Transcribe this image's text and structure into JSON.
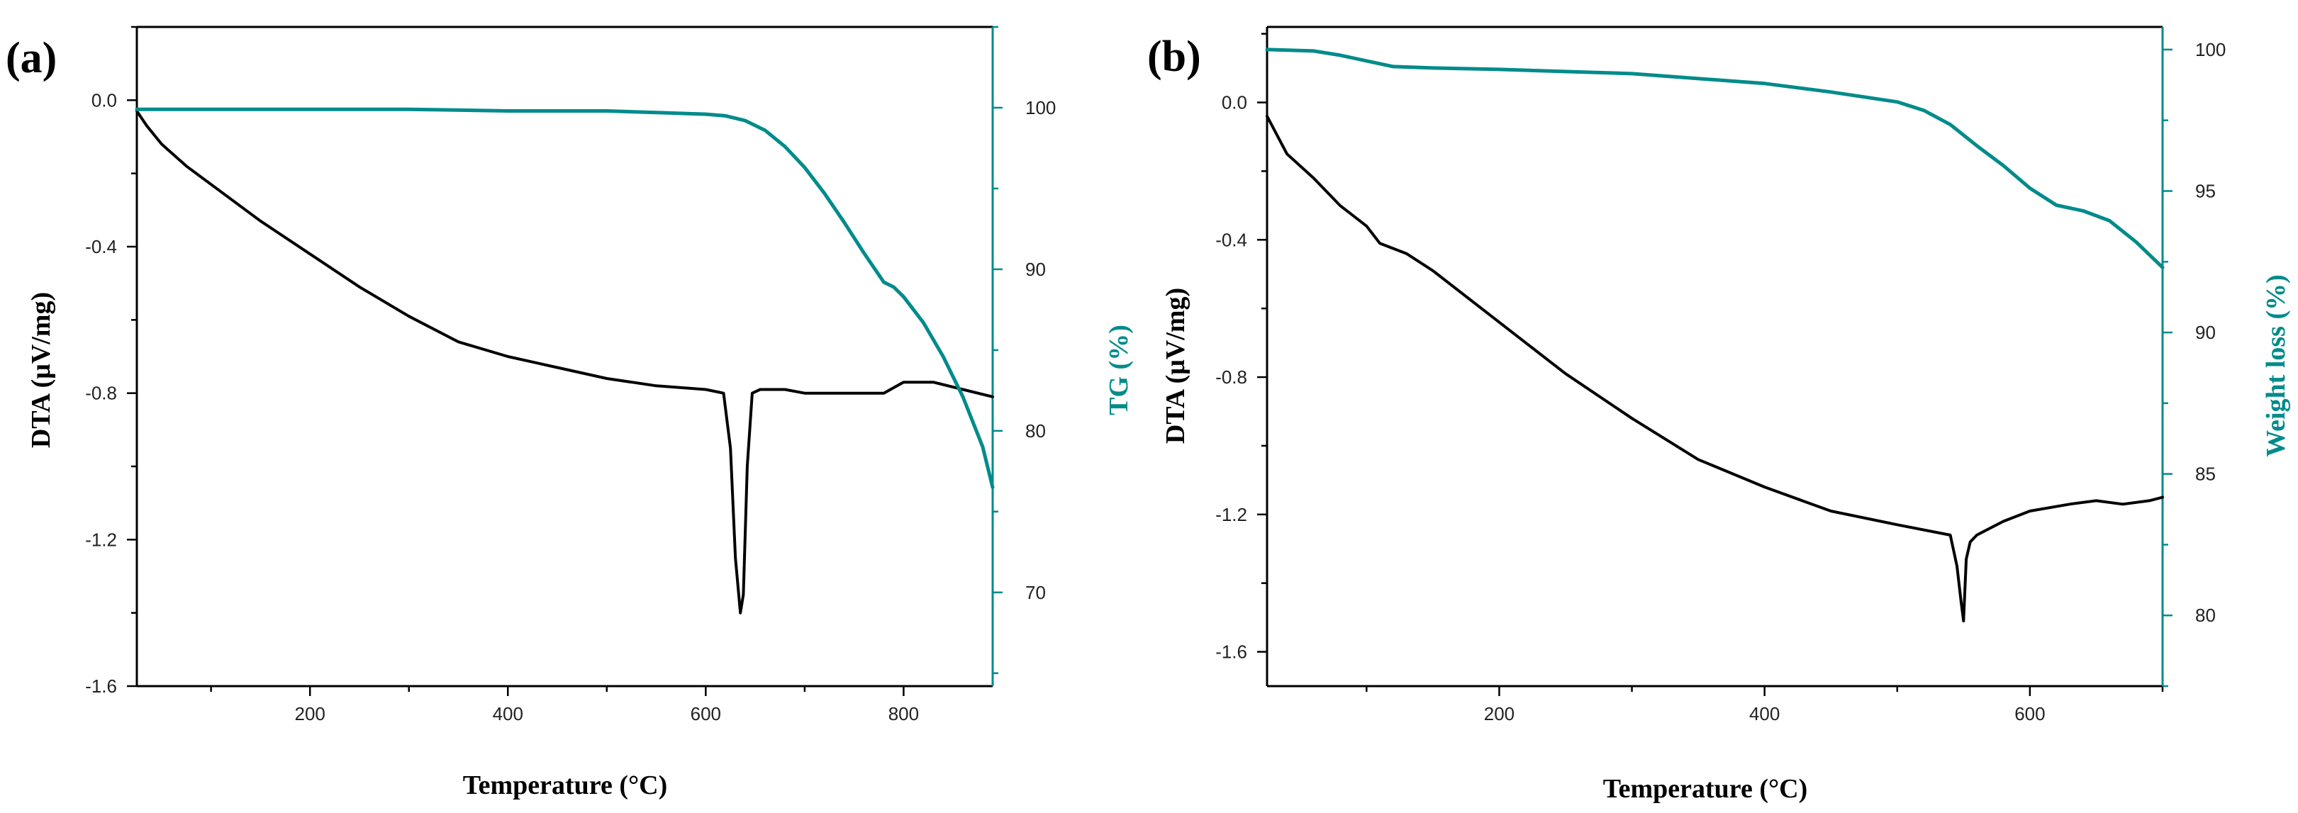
{
  "colors": {
    "dta": "#000000",
    "tg": "#008b8b",
    "axis": "#000000"
  },
  "chart_data": [
    {
      "type": "line",
      "panel_label": "(a)",
      "xlabel": "Temperature (°C)",
      "ylabel_left": "DTA (μV/mg)",
      "ylabel_right": "TG (%)",
      "xlim": [
        25,
        890
      ],
      "ylim_left": [
        -1.6,
        0.2
      ],
      "ylim_right": [
        64.2,
        105
      ],
      "x_ticks": [
        200,
        400,
        600,
        800
      ],
      "y_left_ticks": [
        0.0,
        -0.4,
        -0.8,
        -1.2,
        -1.6
      ],
      "y_left_tick_labels": [
        "0.0",
        "-0.4",
        "-0.8",
        "-1.2",
        "-1.6"
      ],
      "y_right_ticks": [
        100,
        90,
        80,
        70
      ],
      "series": [
        {
          "name": "DTA",
          "axis": "left",
          "x": [
            25,
            35,
            50,
            75,
            100,
            150,
            200,
            250,
            300,
            350,
            400,
            450,
            500,
            550,
            600,
            618,
            625,
            630,
            635,
            638,
            642,
            647,
            655,
            680,
            700,
            720,
            750,
            780,
            800,
            830,
            860,
            890
          ],
          "y": [
            -0.03,
            -0.07,
            -0.12,
            -0.18,
            -0.23,
            -0.33,
            -0.42,
            -0.51,
            -0.59,
            -0.66,
            -0.7,
            -0.73,
            -0.76,
            -0.78,
            -0.79,
            -0.8,
            -0.95,
            -1.25,
            -1.4,
            -1.35,
            -1.0,
            -0.8,
            -0.79,
            -0.79,
            -0.8,
            -0.8,
            -0.8,
            -0.8,
            -0.77,
            -0.77,
            -0.79,
            -0.81
          ]
        },
        {
          "name": "TG",
          "axis": "right",
          "x": [
            25,
            100,
            200,
            300,
            400,
            500,
            550,
            600,
            620,
            640,
            660,
            680,
            700,
            720,
            740,
            760,
            780,
            790,
            800,
            820,
            840,
            860,
            880,
            890
          ],
          "y": [
            99.9,
            99.9,
            99.9,
            99.9,
            99.8,
            99.8,
            99.7,
            99.6,
            99.5,
            99.2,
            98.6,
            97.6,
            96.3,
            94.7,
            92.9,
            91.0,
            89.2,
            88.9,
            88.3,
            86.7,
            84.6,
            82.1,
            79.0,
            76.5
          ]
        }
      ]
    },
    {
      "type": "line",
      "panel_label": "(b)",
      "xlabel": "Temperature (°C)",
      "ylabel_left": "DTA (μV/mg)",
      "ylabel_right": "Weight loss (%)",
      "xlim": [
        25,
        700
      ],
      "ylim_left": [
        -1.7,
        0.22
      ],
      "ylim_right": [
        77.5,
        100.8
      ],
      "x_ticks": [
        200,
        400,
        600
      ],
      "y_left_ticks": [
        0.0,
        -0.4,
        -0.8,
        -1.2,
        -1.6
      ],
      "y_left_tick_labels": [
        "0.0",
        "-0.4",
        "-0.8",
        "-1.2",
        "-1.6"
      ],
      "y_right_ticks": [
        100,
        95,
        90,
        85,
        80
      ],
      "series": [
        {
          "name": "DTA",
          "axis": "left",
          "x": [
            25,
            40,
            60,
            80,
            100,
            110,
            130,
            150,
            200,
            250,
            300,
            350,
            400,
            450,
            500,
            540,
            545,
            548,
            550,
            552,
            555,
            560,
            580,
            600,
            630,
            650,
            670,
            690,
            700
          ],
          "y": [
            -0.04,
            -0.15,
            -0.22,
            -0.3,
            -0.36,
            -0.41,
            -0.44,
            -0.49,
            -0.64,
            -0.79,
            -0.92,
            -1.04,
            -1.12,
            -1.19,
            -1.23,
            -1.26,
            -1.35,
            -1.45,
            -1.51,
            -1.33,
            -1.28,
            -1.26,
            -1.22,
            -1.19,
            -1.17,
            -1.16,
            -1.17,
            -1.16,
            -1.15
          ]
        },
        {
          "name": "Weight loss",
          "axis": "right",
          "x": [
            25,
            60,
            80,
            100,
            120,
            150,
            200,
            300,
            400,
            450,
            500,
            520,
            540,
            560,
            580,
            600,
            620,
            640,
            660,
            680,
            700
          ],
          "y": [
            100.0,
            99.95,
            99.8,
            99.6,
            99.4,
            99.35,
            99.3,
            99.15,
            98.8,
            98.5,
            98.15,
            97.85,
            97.35,
            96.6,
            95.9,
            95.1,
            94.5,
            94.3,
            93.95,
            93.2,
            92.3
          ]
        }
      ]
    }
  ]
}
